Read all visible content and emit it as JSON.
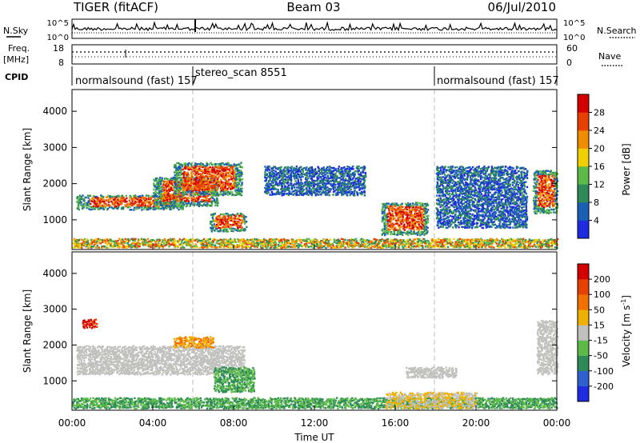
{
  "header": {
    "station": "TIGER (fitACF)",
    "beam": "Beam 03",
    "date": "06/Jul/2010"
  },
  "top_panels": {
    "nsky_label": "N.Sky",
    "nsky_ticks": [
      "10^5",
      "10^0"
    ],
    "nsearch_label": "N.Search",
    "nsearch_ticks": [
      "10^5",
      "10^0"
    ],
    "freq_label": "Freq.",
    "freq_unit": "[MHz]",
    "freq_ticks": [
      "18",
      "8"
    ],
    "nave_label": "Nave",
    "nave_ticks": [
      "60",
      "0"
    ],
    "cpid_label": "CPID",
    "cpid_segments": [
      {
        "label": "normalsound (fast) 157",
        "start_h": 0,
        "end_h": 6
      },
      {
        "label": "stereo_scan 8551",
        "start_h": 6,
        "end_h": 18
      },
      {
        "label": "normalsound (fast) 157",
        "start_h": 18,
        "end_h": 24
      }
    ]
  },
  "colorbars": {
    "power": {
      "label": "Power [dB]",
      "ticks": [
        "4",
        "8",
        "12",
        "16",
        "20",
        "24",
        "28"
      ],
      "colors": [
        "#1f2be0",
        "#1a5fb4",
        "#2e8b57",
        "#5cba48",
        "#f0d000",
        "#f08c00",
        "#e84000",
        "#d40000"
      ]
    },
    "velocity": {
      "label": "Velocity [m s",
      "label_exp": "-1",
      "label_end": "]",
      "ticks": [
        "200",
        "100",
        "50",
        "15",
        "-15",
        "-50",
        "-100",
        "-200"
      ],
      "colors": [
        "#1f2be0",
        "#3060d0",
        "#2e8b57",
        "#5cba48",
        "#c0c0bc",
        "#f0b000",
        "#f07000",
        "#e84000",
        "#d40000"
      ]
    }
  },
  "chart_data": [
    {
      "type": "heatmap",
      "panel": "power",
      "ylabel": "Slant Range [km]",
      "ylim": [
        180,
        4600
      ],
      "yticks": [
        "1000",
        "2000",
        "3000",
        "4000"
      ],
      "xlim": [
        0,
        24
      ],
      "blobs": [
        {
          "t0": 0.2,
          "t1": 5.5,
          "r0": 1300,
          "r1": 1700,
          "level": "high"
        },
        {
          "t0": 4.0,
          "t1": 7.2,
          "r0": 1400,
          "r1": 2200,
          "level": "high"
        },
        {
          "t0": 5.0,
          "t1": 8.4,
          "r0": 1700,
          "r1": 2600,
          "level": "high"
        },
        {
          "t0": 6.8,
          "t1": 8.6,
          "r0": 700,
          "r1": 1200,
          "level": "high"
        },
        {
          "t0": 15.3,
          "t1": 17.6,
          "r0": 600,
          "r1": 1500,
          "level": "high"
        },
        {
          "t0": 22.8,
          "t1": 24.0,
          "r0": 1200,
          "r1": 2400,
          "level": "high"
        },
        {
          "t0": 0.0,
          "t1": 24.0,
          "r0": 250,
          "r1": 500,
          "level": "mid"
        },
        {
          "t0": 9.5,
          "t1": 14.5,
          "r0": 1700,
          "r1": 2500,
          "level": "low"
        },
        {
          "t0": 18.0,
          "t1": 22.5,
          "r0": 800,
          "r1": 2500,
          "level": "low"
        }
      ]
    },
    {
      "type": "heatmap",
      "panel": "velocity",
      "ylabel": "Slant Range [km]",
      "xlabel": "Time UT",
      "ylim": [
        180,
        4600
      ],
      "yticks": [
        "1000",
        "2000",
        "3000",
        "4000"
      ],
      "xlim": [
        0,
        24
      ],
      "xticks": [
        "00:00",
        "04:00",
        "08:00",
        "12:00",
        "16:00",
        "20:00",
        "00:00"
      ],
      "blobs": [
        {
          "t0": 0.2,
          "t1": 8.5,
          "r0": 1200,
          "r1": 2000,
          "vel": "grey"
        },
        {
          "t0": 5.0,
          "t1": 7.0,
          "r0": 1950,
          "r1": 2250,
          "vel": "orange"
        },
        {
          "t0": 0.5,
          "t1": 1.2,
          "r0": 2500,
          "r1": 2750,
          "vel": "red"
        },
        {
          "t0": 7.0,
          "t1": 9.0,
          "r0": 700,
          "r1": 1400,
          "vel": "green"
        },
        {
          "t0": 0.0,
          "t1": 24.0,
          "r0": 250,
          "r1": 550,
          "vel": "green"
        },
        {
          "t0": 15.5,
          "t1": 20.0,
          "r0": 250,
          "r1": 700,
          "vel": "yellow"
        },
        {
          "t0": 16.5,
          "t1": 19.0,
          "r0": 1100,
          "r1": 1400,
          "vel": "grey"
        },
        {
          "t0": 23.0,
          "t1": 24.0,
          "r0": 1200,
          "r1": 2700,
          "vel": "grey"
        }
      ]
    }
  ]
}
